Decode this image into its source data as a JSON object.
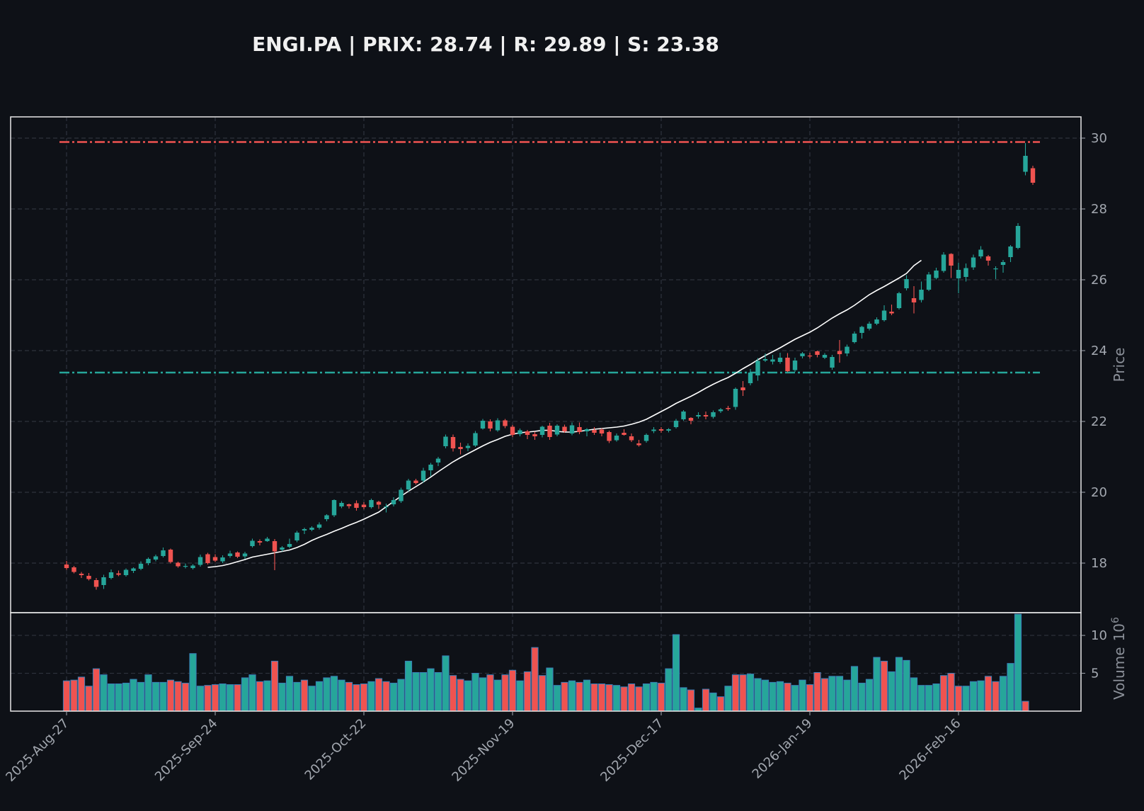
{
  "chart_data": {
    "type": "candlestick",
    "title": "ENGI.PA | PRIX: 28.74 | R: 29.89 | S: 23.38",
    "ylabel": "Price",
    "volume_label": "Volume",
    "volume_exponent": "10",
    "volume_power": "6",
    "ylim": [
      16.6,
      30.6
    ],
    "volume_ylim": [
      0,
      13
    ],
    "y_ticks": [
      18,
      20,
      22,
      24,
      26,
      28,
      30
    ],
    "volume_ticks": [
      5,
      10
    ],
    "x_tick_labels": [
      "2025-Aug-27",
      "2025-Sep-24",
      "2025-Oct-22",
      "2025-Nov-19",
      "2025-Dec-17",
      "2026-Jan-19",
      "2026-Feb-16"
    ],
    "x_tick_indices": [
      0,
      20,
      40,
      60,
      80,
      100,
      120
    ],
    "resistance": 29.89,
    "support": 23.38,
    "ma_start_index": 19,
    "grid": true,
    "colors": {
      "up": "#26a69a",
      "down": "#ef5350",
      "background": "#0e1117",
      "resistance": "#ef5350",
      "support": "#26a69a",
      "moving_average": "#ffffff",
      "grid": "#2e333d",
      "text": "#a3a8b0",
      "title": "#f0f0f0"
    },
    "candles": [
      [
        17.96,
        18.06,
        17.81,
        17.86
      ],
      [
        17.88,
        17.92,
        17.71,
        17.75
      ],
      [
        17.7,
        17.75,
        17.58,
        17.66
      ],
      [
        17.64,
        17.72,
        17.51,
        17.55
      ],
      [
        17.52,
        17.58,
        17.25,
        17.33
      ],
      [
        17.38,
        17.67,
        17.27,
        17.6
      ],
      [
        17.58,
        17.82,
        17.54,
        17.74
      ],
      [
        17.71,
        17.79,
        17.63,
        17.67
      ],
      [
        17.66,
        17.85,
        17.62,
        17.81
      ],
      [
        17.78,
        17.88,
        17.72,
        17.85
      ],
      [
        17.84,
        18.05,
        17.8,
        17.98
      ],
      [
        18.0,
        18.16,
        17.94,
        18.12
      ],
      [
        18.1,
        18.24,
        18.05,
        18.19
      ],
      [
        18.2,
        18.44,
        18.16,
        18.36
      ],
      [
        18.38,
        18.41,
        17.99,
        18.03
      ],
      [
        18.01,
        18.04,
        17.87,
        17.91
      ],
      [
        17.9,
        17.99,
        17.85,
        17.92
      ],
      [
        17.86,
        17.97,
        17.82,
        17.93
      ],
      [
        17.95,
        18.24,
        17.9,
        18.17
      ],
      [
        18.25,
        18.29,
        17.96,
        18.0
      ],
      [
        18.17,
        18.25,
        18.03,
        18.07
      ],
      [
        18.05,
        18.22,
        18.0,
        18.16
      ],
      [
        18.2,
        18.35,
        18.15,
        18.27
      ],
      [
        18.3,
        18.33,
        18.14,
        18.18
      ],
      [
        18.19,
        18.32,
        18.12,
        18.27
      ],
      [
        18.48,
        18.69,
        18.44,
        18.63
      ],
      [
        18.62,
        18.67,
        18.5,
        18.58
      ],
      [
        18.62,
        18.74,
        18.6,
        18.69
      ],
      [
        18.62,
        18.68,
        17.8,
        18.33
      ],
      [
        18.38,
        18.48,
        18.33,
        18.44
      ],
      [
        18.46,
        18.69,
        18.42,
        18.54
      ],
      [
        18.64,
        18.91,
        18.59,
        18.86
      ],
      [
        18.92,
        19.0,
        18.82,
        18.96
      ],
      [
        18.94,
        19.04,
        18.9,
        19.0
      ],
      [
        19.0,
        19.15,
        18.95,
        19.09
      ],
      [
        19.24,
        19.38,
        19.18,
        19.35
      ],
      [
        19.35,
        19.8,
        19.3,
        19.78
      ],
      [
        19.6,
        19.75,
        19.55,
        19.7
      ],
      [
        19.66,
        19.68,
        19.54,
        19.61
      ],
      [
        19.69,
        19.77,
        19.48,
        19.56
      ],
      [
        19.65,
        19.72,
        19.52,
        19.58
      ],
      [
        19.58,
        19.82,
        19.54,
        19.78
      ],
      [
        19.73,
        19.76,
        19.53,
        19.65
      ],
      [
        19.58,
        19.68,
        19.43,
        19.6
      ],
      [
        19.66,
        19.86,
        19.6,
        19.78
      ],
      [
        19.75,
        20.13,
        19.7,
        20.07
      ],
      [
        20.08,
        20.38,
        20.02,
        20.33
      ],
      [
        20.33,
        20.38,
        20.22,
        20.26
      ],
      [
        20.33,
        20.69,
        20.27,
        20.61
      ],
      [
        20.62,
        20.83,
        20.45,
        20.78
      ],
      [
        20.84,
        21.0,
        20.74,
        20.95
      ],
      [
        21.3,
        21.63,
        21.24,
        21.57
      ],
      [
        21.56,
        21.63,
        21.15,
        21.24
      ],
      [
        21.28,
        21.4,
        21.07,
        21.22
      ],
      [
        21.25,
        21.38,
        21.16,
        21.31
      ],
      [
        21.32,
        21.73,
        21.28,
        21.67
      ],
      [
        21.8,
        22.07,
        21.77,
        22.02
      ],
      [
        22.0,
        22.06,
        21.72,
        21.8
      ],
      [
        21.75,
        22.09,
        21.71,
        22.03
      ],
      [
        22.03,
        22.07,
        21.81,
        21.87
      ],
      [
        21.85,
        21.9,
        21.56,
        21.62
      ],
      [
        21.64,
        21.8,
        21.58,
        21.75
      ],
      [
        21.72,
        21.76,
        21.5,
        21.62
      ],
      [
        21.64,
        21.71,
        21.48,
        21.58
      ],
      [
        21.62,
        21.88,
        21.55,
        21.85
      ],
      [
        21.88,
        21.96,
        21.48,
        21.56
      ],
      [
        21.63,
        21.92,
        21.58,
        21.88
      ],
      [
        21.85,
        21.91,
        21.68,
        21.72
      ],
      [
        21.66,
        21.97,
        21.61,
        21.89
      ],
      [
        21.84,
        21.97,
        21.64,
        21.7
      ],
      [
        21.72,
        21.81,
        21.58,
        21.78
      ],
      [
        21.76,
        21.84,
        21.62,
        21.68
      ],
      [
        21.77,
        21.81,
        21.58,
        21.66
      ],
      [
        21.7,
        21.74,
        21.39,
        21.45
      ],
      [
        21.47,
        21.66,
        21.43,
        21.6
      ],
      [
        21.68,
        21.78,
        21.6,
        21.62
      ],
      [
        21.58,
        21.66,
        21.42,
        21.47
      ],
      [
        21.38,
        21.48,
        21.29,
        21.33
      ],
      [
        21.45,
        21.66,
        21.4,
        21.62
      ],
      [
        21.73,
        21.84,
        21.67,
        21.77
      ],
      [
        21.78,
        21.84,
        21.68,
        21.74
      ],
      [
        21.74,
        21.81,
        21.69,
        21.78
      ],
      [
        21.84,
        22.07,
        21.8,
        22.02
      ],
      [
        22.06,
        22.32,
        22.02,
        22.28
      ],
      [
        22.1,
        22.12,
        21.92,
        22.02
      ],
      [
        22.14,
        22.26,
        22.08,
        22.18
      ],
      [
        22.18,
        22.28,
        22.06,
        22.14
      ],
      [
        22.13,
        22.31,
        22.08,
        22.26
      ],
      [
        22.29,
        22.38,
        22.24,
        22.34
      ],
      [
        22.38,
        22.44,
        22.3,
        22.35
      ],
      [
        22.41,
        22.96,
        22.33,
        22.92
      ],
      [
        22.96,
        23.14,
        22.72,
        22.88
      ],
      [
        23.08,
        23.48,
        23.02,
        23.38
      ],
      [
        23.3,
        23.79,
        23.15,
        23.71
      ],
      [
        23.72,
        23.92,
        23.68,
        23.76
      ],
      [
        23.69,
        23.88,
        23.61,
        23.75
      ],
      [
        23.68,
        23.94,
        23.63,
        23.8
      ],
      [
        23.8,
        23.93,
        23.39,
        23.42
      ],
      [
        23.45,
        23.8,
        23.4,
        23.72
      ],
      [
        23.84,
        23.96,
        23.78,
        23.92
      ],
      [
        23.86,
        23.94,
        23.78,
        23.84
      ],
      [
        23.98,
        24.0,
        23.81,
        23.88
      ],
      [
        23.8,
        23.93,
        23.76,
        23.88
      ],
      [
        23.52,
        23.88,
        23.46,
        23.82
      ],
      [
        23.99,
        24.3,
        23.66,
        23.9
      ],
      [
        23.92,
        24.17,
        23.84,
        24.11
      ],
      [
        24.24,
        24.54,
        24.2,
        24.48
      ],
      [
        24.5,
        24.7,
        24.34,
        24.67
      ],
      [
        24.62,
        24.82,
        24.57,
        24.76
      ],
      [
        24.76,
        24.94,
        24.72,
        24.88
      ],
      [
        24.86,
        25.28,
        24.82,
        25.13
      ],
      [
        25.1,
        25.3,
        25.0,
        25.05
      ],
      [
        25.2,
        25.66,
        25.16,
        25.62
      ],
      [
        25.76,
        26.13,
        25.7,
        26.02
      ],
      [
        25.48,
        25.82,
        25.05,
        25.36
      ],
      [
        25.43,
        25.95,
        25.36,
        25.72
      ],
      [
        25.72,
        26.22,
        25.68,
        26.15
      ],
      [
        26.05,
        26.34,
        26.01,
        26.26
      ],
      [
        26.25,
        26.78,
        26.2,
        26.71
      ],
      [
        26.73,
        26.75,
        26.05,
        26.4
      ],
      [
        26.04,
        26.48,
        25.62,
        26.28
      ],
      [
        26.08,
        26.46,
        25.95,
        26.33
      ],
      [
        26.35,
        26.71,
        26.28,
        26.63
      ],
      [
        26.66,
        26.95,
        26.6,
        26.85
      ],
      [
        26.66,
        26.7,
        26.4,
        26.54
      ],
      [
        26.3,
        26.38,
        26.02,
        26.32
      ],
      [
        26.42,
        26.56,
        26.2,
        26.5
      ],
      [
        26.64,
        26.98,
        26.5,
        26.94
      ],
      [
        26.9,
        27.6,
        26.86,
        27.52
      ],
      [
        29.05,
        29.86,
        28.95,
        29.5
      ],
      [
        29.15,
        29.22,
        28.68,
        28.74
      ]
    ],
    "volume": [
      4.0,
      4.1,
      4.5,
      3.3,
      5.6,
      4.8,
      3.6,
      3.6,
      3.7,
      4.2,
      3.8,
      4.8,
      3.8,
      3.8,
      4.1,
      3.9,
      3.7,
      7.6,
      3.3,
      3.4,
      3.5,
      3.6,
      3.5,
      3.5,
      4.4,
      4.8,
      3.9,
      4.0,
      6.6,
      3.7,
      4.6,
      3.8,
      4.1,
      3.3,
      3.9,
      4.4,
      4.6,
      4.1,
      3.8,
      3.5,
      3.6,
      3.9,
      4.3,
      3.9,
      3.7,
      4.2,
      6.6,
      5.1,
      5.1,
      5.6,
      5.1,
      7.3,
      4.7,
      4.2,
      4.0,
      5.0,
      4.4,
      4.8,
      4.1,
      4.8,
      5.4,
      4.0,
      5.2,
      8.4,
      4.7,
      5.7,
      3.4,
      3.8,
      4.0,
      3.8,
      4.1,
      3.6,
      3.6,
      3.5,
      3.4,
      3.2,
      3.6,
      3.2,
      3.6,
      3.8,
      3.7,
      5.6,
      10.1,
      3.1,
      2.8,
      0.4,
      2.9,
      2.4,
      1.9,
      3.3,
      4.8,
      4.8,
      4.9,
      4.3,
      4.1,
      3.8,
      3.9,
      3.7,
      3.4,
      4.1,
      3.5,
      5.1,
      4.3,
      4.6,
      4.6,
      4.1,
      5.9,
      3.7,
      4.2,
      7.1,
      6.6,
      5.2,
      7.1,
      6.7,
      4.4,
      3.4,
      3.4,
      3.6,
      4.7,
      5.0,
      3.3,
      3.3,
      3.9,
      4.0,
      4.6,
      3.9,
      4.6,
      6.3,
      12.8,
      1.3
    ],
    "volume_up": [
      0,
      0,
      0,
      0,
      0,
      1,
      1,
      1,
      1,
      1,
      1,
      1,
      1,
      1,
      0,
      0,
      0,
      1,
      1,
      0,
      0,
      1,
      1,
      0,
      1,
      1,
      0,
      1,
      0,
      1,
      1,
      1,
      0,
      1,
      1,
      1,
      1,
      1,
      0,
      0,
      0,
      1,
      0,
      0,
      1,
      1,
      1,
      1,
      1,
      1,
      1,
      1,
      0,
      0,
      1,
      1,
      1,
      0,
      1,
      0,
      0,
      1,
      0,
      0,
      0,
      1,
      1,
      0,
      1,
      0,
      1,
      0,
      0,
      0,
      1,
      0,
      0,
      0,
      1,
      1,
      0,
      1,
      1,
      1,
      0,
      1,
      0,
      1,
      0,
      1,
      0,
      0,
      1,
      1,
      1,
      1,
      1,
      0,
      1,
      1,
      0,
      0,
      0,
      1,
      1,
      1,
      1,
      1,
      1,
      1,
      0,
      1,
      1,
      1,
      1,
      1,
      1,
      1,
      0,
      0,
      0,
      1,
      1,
      1,
      0,
      0,
      1,
      1,
      1,
      0
    ],
    "moving_average": [
      17.88,
      17.9,
      17.93,
      17.98,
      18.04,
      18.1,
      18.17,
      18.21,
      18.25,
      18.29,
      18.33,
      18.37,
      18.44,
      18.53,
      18.64,
      18.73,
      18.81,
      18.9,
      18.98,
      19.07,
      19.15,
      19.24,
      19.34,
      19.44,
      19.59,
      19.74,
      19.89,
      20.03,
      20.16,
      20.29,
      20.43,
      20.58,
      20.72,
      20.86,
      20.98,
      21.09,
      21.2,
      21.31,
      21.41,
      21.49,
      21.58,
      21.64,
      21.68,
      21.7,
      21.72,
      21.75,
      21.75,
      21.72,
      21.7,
      21.7,
      21.72,
      21.75,
      21.78,
      21.8,
      21.82,
      21.84,
      21.87,
      21.92,
      21.98,
      22.06,
      22.17,
      22.28,
      22.39,
      22.51,
      22.61,
      22.71,
      22.82,
      22.94,
      23.05,
      23.15,
      23.24,
      23.36,
      23.49,
      23.61,
      23.74,
      23.86,
      23.97,
      24.08,
      24.2,
      24.32,
      24.42,
      24.52,
      24.64,
      24.78,
      24.92,
      25.04,
      25.15,
      25.28,
      25.43,
      25.58,
      25.7,
      25.81,
      25.93,
      26.05,
      26.18,
      26.4,
      26.55
    ]
  }
}
